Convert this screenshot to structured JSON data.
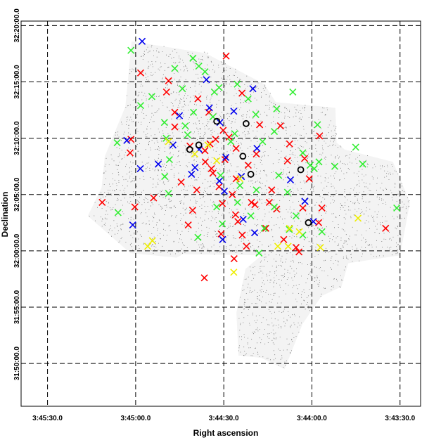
{
  "chart_data": {
    "type": "scatter",
    "title": "",
    "xlabel": "Right ascension",
    "ylabel": "Declination",
    "x_ticks": [
      "3:45:30.0",
      "3:45:00.0",
      "3:44:30.0",
      "3:44:00.0",
      "3:43:30.0"
    ],
    "y_ticks": [
      "32:20:00.0",
      "32:15:00.0",
      "32:10:00.0",
      "32:05:00.0",
      "32:00:00.0",
      "31:55:00.0",
      "31:50:00.0"
    ],
    "x_tick_values_sec": [
      13530,
      13500,
      13470,
      13440,
      13410
    ],
    "y_tick_values_min": [
      1940,
      1935,
      1930,
      1925,
      1920,
      1915,
      1910
    ],
    "xlim_sec": [
      13539,
      13403
    ],
    "ylim_min": [
      1906.2,
      1940.4
    ],
    "grid": true,
    "grid_style": "dashed",
    "marker_colors": {
      "red": "#ff0000",
      "green": "#33ee33",
      "blue": "#0000ee",
      "yellow": "#eeee00",
      "circle": "#000000"
    },
    "series": [
      {
        "color": "red",
        "marker": "x",
        "points": [
          [
            13511.4,
            1924.3
          ],
          [
            13475.1,
            1932.3
          ],
          [
            13469.2,
            1937.3
          ],
          [
            13486.7,
            1931.0
          ],
          [
            13448.3,
            1928.0
          ],
          [
            13436.6,
            1923.8
          ],
          [
            13414.9,
            1922.0
          ],
          [
            13498.3,
            1935.8
          ],
          [
            13488.8,
            1935.1
          ],
          [
            13481.5,
            1929.3
          ],
          [
            13476.4,
            1928.9
          ],
          [
            13473.7,
            1926.9
          ],
          [
            13471.6,
            1925.7
          ],
          [
            13465.2,
            1922.6
          ],
          [
            13463.7,
            1921.4
          ],
          [
            13462.3,
            1920.4
          ],
          [
            13455.7,
            1922.0
          ],
          [
            13452.0,
            1923.7
          ],
          [
            13440.9,
            1926.4
          ],
          [
            13437.4,
            1930.2
          ],
          [
            13476.6,
            1917.6
          ],
          [
            13472.8,
            1929.9
          ],
          [
            13474.2,
            1927.3
          ],
          [
            13467.1,
            1925.0
          ],
          [
            13458.9,
            1928.6
          ],
          [
            13450.7,
            1931.1
          ],
          [
            13493.9,
            1924.7
          ],
          [
            13500.3,
            1923.9
          ],
          [
            13480.6,
            1923.6
          ],
          [
            13466.0,
            1923.2
          ],
          [
            13443.1,
            1923.8
          ],
          [
            13437.7,
            1922.5
          ],
          [
            13501.6,
            1929.9
          ],
          [
            13478.8,
            1933.5
          ],
          [
            13463.8,
            1934.0
          ],
          [
            13457.8,
            1931.2
          ],
          [
            13454.5,
            1924.3
          ],
          [
            13449.6,
            1921.0
          ],
          [
            13445.4,
            1920.3
          ],
          [
            13484.5,
            1926.1
          ],
          [
            13479.2,
            1925.4
          ],
          [
            13470.5,
            1924.2
          ],
          [
            13465.8,
            1929.1
          ],
          [
            13461.7,
            1927.6
          ],
          [
            13442.5,
            1928.2
          ],
          [
            13489.5,
            1934.1
          ],
          [
            13468.2,
            1930.1
          ],
          [
            13460.6,
            1924.3
          ],
          [
            13453.7,
            1925.4
          ],
          [
            13447.6,
            1929.5
          ],
          [
            13476.3,
            1927.9
          ],
          [
            13470.2,
            1930.7
          ],
          [
            13474.7,
            1929.5
          ],
          [
            13469.6,
            1928.1
          ],
          [
            13465.8,
            1926.4
          ],
          [
            13459.4,
            1924.1
          ],
          [
            13482.1,
            1922.3
          ],
          [
            13444.4,
            1919.9
          ],
          [
            13486.7,
            1932.3
          ],
          [
            13501.9,
            1928.7
          ],
          [
            13470.9,
            1921.5
          ],
          [
            13466.5,
            1919.3
          ]
        ]
      },
      {
        "color": "green",
        "marker": "x",
        "points": [
          [
            13501.6,
            1937.8
          ],
          [
            13480.5,
            1937.1
          ],
          [
            13486.7,
            1936.2
          ],
          [
            13478.5,
            1936.4
          ],
          [
            13476.4,
            1935.9
          ],
          [
            13471.6,
            1934.5
          ],
          [
            13465.4,
            1934.8
          ],
          [
            13461.7,
            1933.5
          ],
          [
            13452.0,
            1932.6
          ],
          [
            13438.1,
            1931.2
          ],
          [
            13425.1,
            1929.2
          ],
          [
            13422.7,
            1927.7
          ],
          [
            13411.1,
            1923.8
          ],
          [
            13437.6,
            1927.9
          ],
          [
            13443.1,
            1928.7
          ],
          [
            13506.3,
            1929.6
          ],
          [
            13489.6,
            1930.0
          ],
          [
            13482.3,
            1930.3
          ],
          [
            13471.1,
            1926.7
          ],
          [
            13464.5,
            1925.8
          ],
          [
            13458.9,
            1925.4
          ],
          [
            13451.3,
            1926.7
          ],
          [
            13460.8,
            1923.1
          ],
          [
            13456.2,
            1922.0
          ],
          [
            13436.6,
            1921.7
          ],
          [
            13447.7,
            1921.9
          ],
          [
            13478.8,
            1921.2
          ],
          [
            13490.1,
            1926.6
          ],
          [
            13470.5,
            1922.4
          ],
          [
            13448.3,
            1925.2
          ],
          [
            13445.4,
            1923.1
          ],
          [
            13443.1,
            1921.4
          ],
          [
            13498.3,
            1932.9
          ],
          [
            13480.3,
            1932.3
          ],
          [
            13473.2,
            1934.1
          ],
          [
            13459.1,
            1932.1
          ],
          [
            13452.8,
            1930.6
          ],
          [
            13439.2,
            1927.3
          ],
          [
            13432.2,
            1927.5
          ],
          [
            13483.1,
            1931.1
          ],
          [
            13466.3,
            1930.4
          ],
          [
            13467.6,
            1929.7
          ],
          [
            13473.7,
            1931.9
          ],
          [
            13488.8,
            1925.1
          ],
          [
            13456.8,
            1929.7
          ],
          [
            13465.3,
            1924.3
          ],
          [
            13452.8,
            1923.9
          ],
          [
            13490.2,
            1931.4
          ],
          [
            13506.0,
            1923.4
          ],
          [
            13488.5,
            1928.1
          ],
          [
            13458.0,
            1919.8
          ],
          [
            13472.4,
            1923.9
          ],
          [
            13494.5,
            1933.7
          ],
          [
            13484.1,
            1934.4
          ],
          [
            13446.5,
            1934.1
          ],
          [
            13440.6,
            1927.6
          ]
        ]
      },
      {
        "color": "blue",
        "marker": "x",
        "points": [
          [
            13497.8,
            1938.6
          ],
          [
            13485.1,
            1932.0
          ],
          [
            13474.9,
            1932.7
          ],
          [
            13466.6,
            1932.4
          ],
          [
            13471.3,
            1931.4
          ],
          [
            13478.4,
            1929.0
          ],
          [
            13464.0,
            1926.6
          ],
          [
            13458.7,
            1929.1
          ],
          [
            13492.3,
            1927.7
          ],
          [
            13469.3,
            1928.3
          ],
          [
            13479.8,
            1927.4
          ],
          [
            13471.5,
            1926.2
          ],
          [
            13470.4,
            1921.0
          ],
          [
            13459.5,
            1921.6
          ],
          [
            13463.4,
            1922.8
          ],
          [
            13442.4,
            1924.4
          ],
          [
            13439.5,
            1922.6
          ],
          [
            13460.1,
            1934.4
          ],
          [
            13498.4,
            1927.3
          ],
          [
            13503.0,
            1929.8
          ],
          [
            13447.3,
            1926.3
          ],
          [
            13469.8,
            1925.3
          ],
          [
            13475.9,
            1935.2
          ],
          [
            13481.0,
            1926.8
          ],
          [
            13487.3,
            1929.4
          ],
          [
            13501.0,
            1922.3
          ]
        ]
      },
      {
        "color": "yellow",
        "marker": "x",
        "points": [
          [
            13475.4,
            1929.4
          ],
          [
            13472.4,
            1928.0
          ],
          [
            13464.5,
            1926.4
          ],
          [
            13444.3,
            1921.7
          ],
          [
            13447.6,
            1922.0
          ],
          [
            13448.1,
            1920.4
          ],
          [
            13494.3,
            1920.9
          ],
          [
            13479.9,
            1928.6
          ],
          [
            13451.6,
            1920.4
          ],
          [
            13424.3,
            1922.9
          ],
          [
            13437.1,
            1920.3
          ],
          [
            13495.9,
            1920.4
          ],
          [
            13466.6,
            1918.1
          ],
          [
            13488.8,
            1929.7
          ]
        ]
      },
      {
        "color": "circle",
        "marker": "o",
        "points": [
          [
            13472.4,
            1931.5
          ],
          [
            13462.4,
            1931.3
          ],
          [
            13481.6,
            1929.0
          ],
          [
            13478.5,
            1929.4
          ],
          [
            13463.5,
            1928.4
          ],
          [
            13460.8,
            1926.8
          ],
          [
            13443.8,
            1927.2
          ],
          [
            13441.2,
            1922.5
          ]
        ]
      }
    ],
    "field_footprint_ra_dec": [
      [
        [
          13501.4,
          1938.6
        ],
        [
          13474.9,
          1937.5
        ],
        [
          13477.3,
          1937.7
        ],
        [
          13456.2,
          1934.8
        ],
        [
          13452.3,
          1933.2
        ],
        [
          13432.0,
          1932.7
        ],
        [
          13431.6,
          1929.6
        ],
        [
          13428.9,
          1929.0
        ],
        [
          13412.4,
          1927.9
        ],
        [
          13406.6,
          1924.3
        ],
        [
          13410.0,
          1919.6
        ],
        [
          13427.6,
          1918.9
        ],
        [
          13430.0,
          1916.8
        ],
        [
          13436.7,
          1916.0
        ],
        [
          13443.2,
          1913.5
        ],
        [
          13449.3,
          1909.5
        ],
        [
          13457.2,
          1910.5
        ],
        [
          13465.0,
          1910.7
        ],
        [
          13465.7,
          1914.5
        ],
        [
          13462.6,
          1918.4
        ],
        [
          13457.1,
          1919.6
        ],
        [
          13483.9,
          1919.7
        ],
        [
          13486.1,
          1919.4
        ],
        [
          13501.8,
          1919.8
        ],
        [
          13516.3,
          1923.1
        ],
        [
          13511.6,
          1925.6
        ],
        [
          13510.5,
          1928.4
        ],
        [
          13503.5,
          1932.8
        ]
      ]
    ]
  }
}
